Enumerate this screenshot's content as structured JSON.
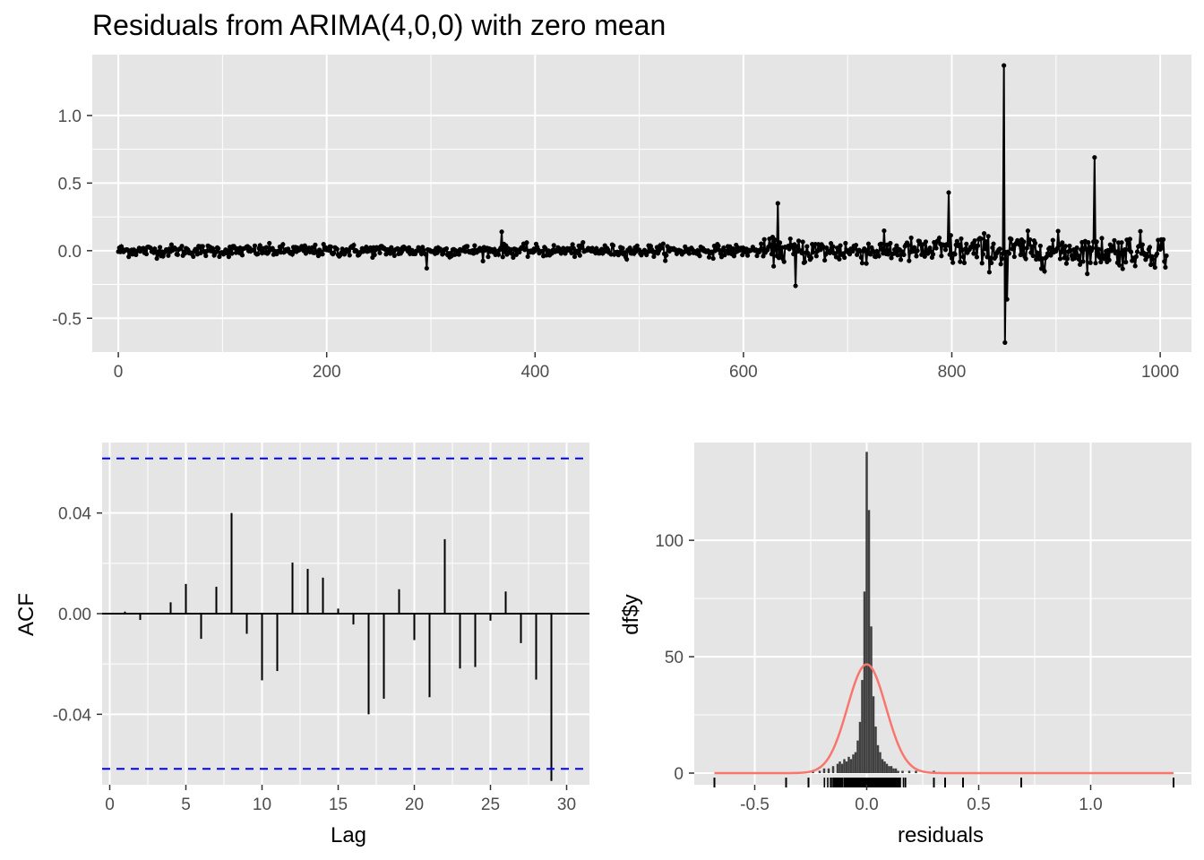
{
  "chart_data": [
    {
      "type": "line",
      "title": "Residuals from ARIMA(4,0,0) with zero mean",
      "xlabel": "",
      "ylabel": "",
      "xlim": [
        -25,
        1030
      ],
      "ylim": [
        -0.75,
        1.45
      ],
      "x_ticks": [
        0,
        200,
        400,
        600,
        800,
        1000
      ],
      "x_tick_labels": [
        "0",
        "200",
        "400",
        "600",
        "800",
        "1000"
      ],
      "y_ticks": [
        -0.5,
        0,
        0.5,
        1
      ],
      "y_tick_labels": [
        "-0.5",
        "0.0",
        "0.5",
        "1.0"
      ],
      "grid": true,
      "markers": true,
      "n_points": 1007,
      "series_description_values": {
        "x": [
          0,
          100,
          200,
          300,
          400,
          500,
          600,
          633,
          650,
          700,
          797,
          850,
          851,
          853,
          900,
          937,
          1007
        ],
        "y": [
          0.0,
          0.01,
          0.0,
          -0.13,
          0.0,
          0.01,
          0.0,
          0.35,
          -0.26,
          0.0,
          0.43,
          1.37,
          -0.68,
          -0.36,
          0.0,
          0.69,
          0.02
        ]
      },
      "notable_points": [
        {
          "x": 850,
          "y": 1.37
        },
        {
          "x": 851,
          "y": -0.68
        },
        {
          "x": 853,
          "y": -0.36
        },
        {
          "x": 937,
          "y": 0.69
        },
        {
          "x": 797,
          "y": 0.43
        },
        {
          "x": 633,
          "y": 0.35
        },
        {
          "x": 650,
          "y": -0.26
        },
        {
          "x": 368,
          "y": 0.14
        },
        {
          "x": 296,
          "y": -0.13
        }
      ]
    },
    {
      "type": "bar",
      "title": "",
      "xlabel": "Lag",
      "ylabel": "ACF",
      "xlim": [
        -0.5,
        31.5
      ],
      "ylim": [
        -0.068,
        0.068
      ],
      "x_ticks": [
        0,
        5,
        10,
        15,
        20,
        25,
        30
      ],
      "x_tick_labels": [
        "0",
        "5",
        "10",
        "15",
        "20",
        "25",
        "30"
      ],
      "y_ticks": [
        -0.04,
        0,
        0.04
      ],
      "y_tick_labels": [
        "-0.04",
        "0.00",
        "0.04"
      ],
      "lags": [
        1,
        2,
        3,
        4,
        5,
        6,
        7,
        8,
        9,
        10,
        11,
        12,
        13,
        14,
        15,
        16,
        17,
        18,
        19,
        20,
        21,
        22,
        23,
        24,
        25,
        26,
        27,
        28,
        29,
        30
      ],
      "values": [
        0.0008,
        -0.0025,
        0.0003,
        0.0045,
        0.0118,
        -0.01,
        0.0107,
        0.04,
        -0.008,
        -0.0265,
        -0.0228,
        0.0203,
        0.0178,
        0.0143,
        0.002,
        -0.0043,
        -0.04,
        -0.0338,
        0.0097,
        -0.0105,
        -0.0332,
        0.0296,
        -0.0218,
        -0.0212,
        -0.0028,
        0.0088,
        -0.0117,
        -0.0262,
        -0.0665,
        0.0002
      ],
      "confidence_bound": 0.0617,
      "grid": true
    },
    {
      "type": "bar",
      "title": "",
      "xlabel": "residuals",
      "ylabel": "df$y",
      "xlim": [
        -0.77,
        1.45
      ],
      "ylim": [
        -5,
        142
      ],
      "x_ticks": [
        -0.5,
        0,
        0.5,
        1
      ],
      "x_tick_labels": [
        "-0.5",
        "0.0",
        "0.5",
        "1.0"
      ],
      "y_ticks": [
        0,
        50,
        100
      ],
      "y_tick_labels": [
        "0",
        "50",
        "100"
      ],
      "bin_width": 0.01,
      "bins": [
        {
          "x": -0.24,
          "count": 1
        },
        {
          "x": -0.21,
          "count": 1
        },
        {
          "x": -0.19,
          "count": 2
        },
        {
          "x": -0.17,
          "count": 2
        },
        {
          "x": -0.15,
          "count": 3
        },
        {
          "x": -0.13,
          "count": 4
        },
        {
          "x": -0.12,
          "count": 5
        },
        {
          "x": -0.11,
          "count": 4
        },
        {
          "x": -0.1,
          "count": 6
        },
        {
          "x": -0.09,
          "count": 5
        },
        {
          "x": -0.08,
          "count": 7
        },
        {
          "x": -0.07,
          "count": 6
        },
        {
          "x": -0.06,
          "count": 8
        },
        {
          "x": -0.05,
          "count": 9
        },
        {
          "x": -0.04,
          "count": 14
        },
        {
          "x": -0.03,
          "count": 22
        },
        {
          "x": -0.02,
          "count": 40
        },
        {
          "x": -0.01,
          "count": 78
        },
        {
          "x": 0.0,
          "count": 138
        },
        {
          "x": 0.01,
          "count": 113
        },
        {
          "x": 0.02,
          "count": 63
        },
        {
          "x": 0.03,
          "count": 33
        },
        {
          "x": 0.04,
          "count": 20
        },
        {
          "x": 0.05,
          "count": 12
        },
        {
          "x": 0.06,
          "count": 9
        },
        {
          "x": 0.07,
          "count": 6
        },
        {
          "x": 0.08,
          "count": 5
        },
        {
          "x": 0.09,
          "count": 4
        },
        {
          "x": 0.1,
          "count": 3
        },
        {
          "x": 0.11,
          "count": 3
        },
        {
          "x": 0.12,
          "count": 2
        },
        {
          "x": 0.13,
          "count": 2
        },
        {
          "x": 0.14,
          "count": 1
        },
        {
          "x": 0.16,
          "count": 1
        },
        {
          "x": 0.19,
          "count": 1
        },
        {
          "x": 0.22,
          "count": 1
        },
        {
          "x": 0.3,
          "count": 1
        }
      ],
      "normal_curve": {
        "mean": 0.0,
        "sd": 0.086,
        "scale": 10.07
      },
      "rug_outliers": [
        -0.68,
        -0.36,
        -0.26,
        0.3,
        0.35,
        0.43,
        0.69,
        1.37
      ],
      "grid": true
    }
  ],
  "colors": {
    "panel_background": "#e5e5e5",
    "grid": "#ffffff",
    "line": "#000000",
    "confidence_line": "#0000ff",
    "histogram_fill": "#404040",
    "density_curve": "#f8766d",
    "tick_text": "#4d4d4d"
  }
}
